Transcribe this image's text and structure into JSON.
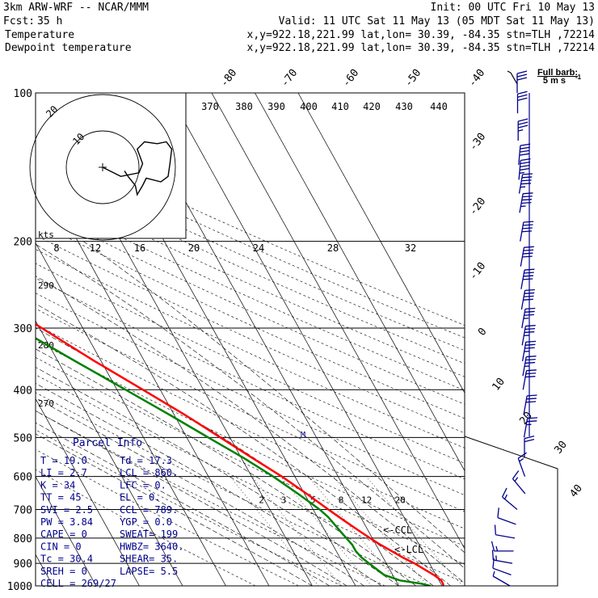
{
  "header": {
    "model": "3km ARW-WRF -- NCAR/MMM",
    "init": "Init: 00 UTC Fri 10 May 13",
    "fcst_label": "Fcst:",
    "fcst_value": "35 h",
    "valid": "Valid: 11 UTC Sat 11 May 13 (05 MDT Sat 11 May 13)",
    "series": [
      {
        "name": "Temperature",
        "color": "#ff0000",
        "info": "x,y=922.18,221.99   lat,lon= 30.39, -84.35   stn=TLH ,72214"
      },
      {
        "name": "Dewpoint temperature",
        "color": "#008000",
        "info": "x,y=922.18,221.99   lat,lon= 30.39, -84.35   stn=TLH ,72214"
      }
    ]
  },
  "barb_legend": {
    "title": "Full barb:",
    "value": "5 m s",
    "exp": "-1"
  },
  "parcel_info": {
    "title": "Parcel Info",
    "rows": [
      [
        "T  =    19.0",
        "Td =  17.3"
      ],
      [
        "LI =     2.7",
        "LCL =  860."
      ],
      [
        "K  =      34",
        "LFC =    0."
      ],
      [
        "TT =      45",
        "EL  =    0."
      ],
      [
        "SVI =    2.5",
        "CCL =  789."
      ],
      [
        "PW =    3.84",
        "YGP =   0.0"
      ],
      [
        "CAPE =     0",
        "SWEAT=  199"
      ],
      [
        "CIN =      0",
        "HWBZ= 3640."
      ],
      [
        "Tc =    30.4",
        "SHEAR=  35."
      ],
      [
        "SREH =     0",
        "LAPSE=   5.5"
      ],
      [
        "CELL = 269/27",
        ""
      ]
    ]
  },
  "hodograph": {
    "units": "kts",
    "ring_labels": [
      "20",
      "10"
    ],
    "speed_axis_labels": [
      "8",
      "12",
      "16",
      "20",
      "24",
      "28",
      "32"
    ],
    "theta_labels": [
      "370",
      "380",
      "390",
      "400",
      "410",
      "420",
      "430",
      "440"
    ],
    "points": [
      [
        0,
        0
      ],
      [
        10,
        -5
      ],
      [
        20,
        -3
      ],
      [
        22,
        2
      ],
      [
        19,
        10
      ],
      [
        23,
        14
      ],
      [
        30,
        13
      ],
      [
        35,
        14
      ],
      [
        38,
        10
      ],
      [
        37,
        2
      ],
      [
        36,
        -5
      ],
      [
        32,
        -8
      ],
      [
        24,
        -6
      ],
      [
        22,
        -10
      ],
      [
        19,
        -15
      ],
      [
        18,
        -10
      ],
      [
        14,
        -5
      ],
      [
        12,
        -2
      ]
    ]
  },
  "annotations": {
    "ccl": "<-CCL",
    "lcl": "<-LCL",
    "mark_m": "M"
  },
  "chart_data": {
    "type": "skew-t",
    "y_axis": {
      "scale": "log",
      "ticks": [
        100,
        200,
        300,
        400,
        500,
        600,
        700,
        800,
        900,
        1000
      ],
      "range": [
        100,
        1000
      ]
    },
    "isotherm_labels": [
      -80,
      -70,
      -60,
      -50,
      -40,
      -30,
      -20,
      -10,
      0,
      10,
      20,
      30,
      40
    ],
    "theta_labels_left": [
      "290",
      "280",
      "270"
    ],
    "mixing_ratio_labels": [
      "2",
      "3",
      "5",
      "8",
      "12",
      "20"
    ],
    "series": [
      {
        "name": "Temperature",
        "color": "#ff0000",
        "p": [
          1000,
          990,
          975,
          950,
          925,
          900,
          875,
          850,
          825,
          800,
          775,
          750,
          725,
          700,
          650,
          600,
          550,
          500,
          450,
          400,
          350,
          300,
          275,
          250,
          225,
          200,
          175,
          160,
          150,
          140,
          125,
          110,
          100
        ],
        "t": [
          20.3,
          20.5,
          20.5,
          19.5,
          18.0,
          16.5,
          14.5,
          12.8,
          11.0,
          9.5,
          8.0,
          6.5,
          5.0,
          3.5,
          0.5,
          -3.0,
          -7.5,
          -12.2,
          -17.5,
          -24.0,
          -31.5,
          -39.5,
          -44.0,
          -49.0,
          -54.0,
          -60.0,
          -65.0,
          -68.0,
          -70.0,
          -72.0,
          -75.0,
          -78.0,
          -79.0
        ]
      },
      {
        "name": "Dewpoint temperature",
        "color": "#008000",
        "p": [
          1000,
          990,
          975,
          950,
          925,
          900,
          875,
          850,
          825,
          800,
          775,
          750,
          725,
          700,
          650,
          600,
          550,
          500,
          450,
          400,
          350,
          300,
          275,
          250,
          225,
          200,
          175,
          160,
          150,
          140,
          125,
          110,
          100
        ],
        "t": [
          17.3,
          15.5,
          11.0,
          8.0,
          7.0,
          6.0,
          5.0,
          4.5,
          4.5,
          4.0,
          3.5,
          3.0,
          2.5,
          1.5,
          -1.5,
          -5.0,
          -9.5,
          -15.0,
          -21.0,
          -28.0,
          -36.0,
          -45.0,
          -50.0,
          -55.0,
          -61.0,
          -67.0,
          -77.0,
          -82.0,
          -85.0,
          -88.0,
          -90.0,
          -92.0,
          -94.0
        ]
      }
    ],
    "wind_barbs": {
      "p": [
        100,
        110,
        125,
        140,
        150,
        160,
        175,
        200,
        225,
        250,
        275,
        300,
        325,
        350,
        375,
        400,
        450,
        500,
        550,
        600,
        650,
        700,
        750,
        800,
        850,
        900,
        950,
        1000
      ],
      "speed_kts": [
        30,
        30,
        35,
        40,
        45,
        45,
        45,
        40,
        40,
        40,
        40,
        35,
        35,
        35,
        35,
        30,
        30,
        25,
        20,
        15,
        15,
        15,
        10,
        10,
        15,
        15,
        10,
        5
      ],
      "dir_deg": [
        270,
        270,
        270,
        275,
        275,
        280,
        280,
        280,
        280,
        280,
        280,
        280,
        280,
        280,
        280,
        280,
        280,
        280,
        270,
        250,
        230,
        220,
        200,
        190,
        180,
        190,
        200,
        210
      ]
    }
  }
}
